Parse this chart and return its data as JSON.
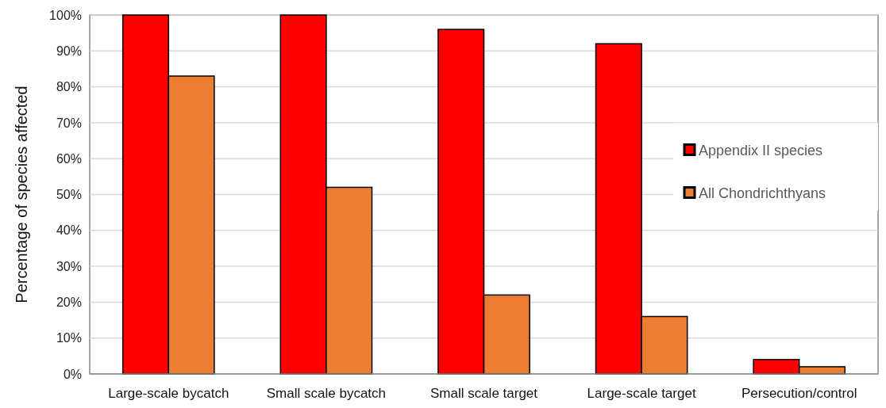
{
  "chart_data": {
    "type": "bar",
    "ylabel": "Percentage of species affected",
    "categories": [
      "Large-scale bycatch",
      "Small scale bycatch",
      "Small scale target",
      "Large-scale target",
      "Persecution/control"
    ],
    "series": [
      {
        "name": "Appendix II species",
        "color": "#ff0000",
        "values": [
          100,
          100,
          96,
          92,
          4
        ]
      },
      {
        "name": "All Chondrichthyans",
        "color": "#ed7d31",
        "values": [
          83,
          52,
          22,
          16,
          2
        ]
      }
    ],
    "ylim": [
      0,
      100
    ],
    "yticks": [
      {
        "value": 0,
        "label": "0%"
      },
      {
        "value": 10,
        "label": "10%"
      },
      {
        "value": 20,
        "label": "20%"
      },
      {
        "value": 30,
        "label": "30%"
      },
      {
        "value": 40,
        "label": "40%"
      },
      {
        "value": 50,
        "label": "50%"
      },
      {
        "value": 60,
        "label": "60%"
      },
      {
        "value": 70,
        "label": "70%"
      },
      {
        "value": 80,
        "label": "80%"
      },
      {
        "value": 90,
        "label": "90%"
      },
      {
        "value": 100,
        "label": "100%"
      }
    ],
    "grid": "y",
    "legend": "right"
  }
}
